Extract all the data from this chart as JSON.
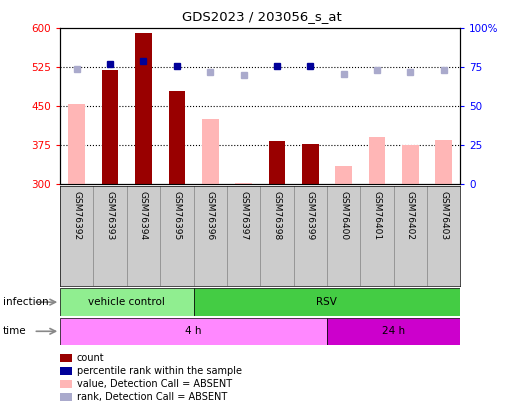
{
  "title": "GDS2023 / 203056_s_at",
  "samples": [
    "GSM76392",
    "GSM76393",
    "GSM76394",
    "GSM76395",
    "GSM76396",
    "GSM76397",
    "GSM76398",
    "GSM76399",
    "GSM76400",
    "GSM76401",
    "GSM76402",
    "GSM76403"
  ],
  "count_values": [
    null,
    519,
    592,
    480,
    null,
    null,
    384,
    377,
    null,
    null,
    null,
    null
  ],
  "count_absent_values": [
    455,
    null,
    null,
    null,
    425,
    303,
    null,
    null,
    335,
    390,
    375,
    385
  ],
  "rank_present": [
    null,
    77,
    79,
    76,
    null,
    null,
    76,
    76,
    null,
    null,
    null,
    null
  ],
  "rank_absent": [
    74,
    null,
    null,
    null,
    72,
    70,
    null,
    null,
    71,
    73,
    72,
    73
  ],
  "ylim": [
    300,
    600
  ],
  "y2lim": [
    0,
    100
  ],
  "yticks": [
    300,
    375,
    450,
    525,
    600
  ],
  "y2ticks": [
    0,
    25,
    50,
    75,
    100
  ],
  "dark_red": "#990000",
  "light_red": "#FFB6B6",
  "dark_blue": "#000099",
  "light_blue": "#AAAACC",
  "veh_color": "#90EE90",
  "rsv_color": "#44CC44",
  "time4_color": "#FF88FF",
  "time24_color": "#CC00CC",
  "legend_items": [
    {
      "color": "#990000",
      "label": "count"
    },
    {
      "color": "#000099",
      "label": "percentile rank within the sample"
    },
    {
      "color": "#FFB6B6",
      "label": "value, Detection Call = ABSENT"
    },
    {
      "color": "#AAAACC",
      "label": "rank, Detection Call = ABSENT"
    }
  ]
}
